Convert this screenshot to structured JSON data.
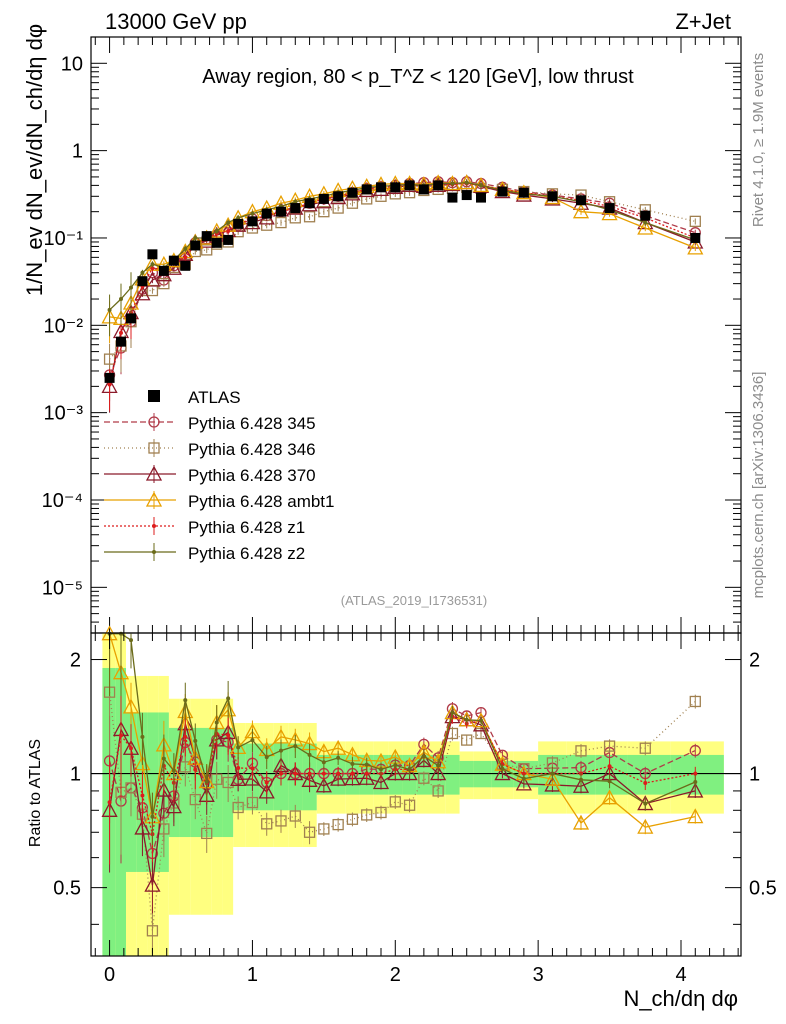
{
  "header": {
    "energy": "13000 GeV pp",
    "process": "Z+Jet"
  },
  "side": {
    "rivet": "Rivet 4.1.0, ≥ 1.9M events",
    "mcplots": "mcplots.cern.ch [arXiv:1306.3436]"
  },
  "chart_data": {
    "type": "line",
    "title": "Away region, 80 < p_T^Z < 120 [GeV], low thrust",
    "analysis_tag": "(ATLAS_2019_I1736531)",
    "xlabel": "N_ch/dη dφ",
    "ylabel": "1/N_ev dN_ev/dN_ch/dη dφ",
    "ratio_ylabel": "Ratio to ATLAS",
    "xlim": [
      -0.13,
      4.42
    ],
    "ylim": [
      3e-06,
      20
    ],
    "ratio_ylim": [
      0.33,
      2.35
    ],
    "log_y": true,
    "x_ticks": [
      "0",
      "1",
      "2",
      "3",
      "4"
    ],
    "y_ticks": [
      "10",
      "1",
      "10⁻¹",
      "10⁻²",
      "10⁻³",
      "10⁻⁴",
      "10⁻⁵"
    ],
    "ratio_ticks": [
      "2",
      "1",
      "0.5"
    ],
    "x": [
      0.0,
      0.08,
      0.15,
      0.23,
      0.3,
      0.38,
      0.45,
      0.53,
      0.6,
      0.68,
      0.75,
      0.83,
      0.9,
      1.0,
      1.1,
      1.2,
      1.3,
      1.4,
      1.5,
      1.6,
      1.7,
      1.8,
      1.9,
      2.0,
      2.1,
      2.2,
      2.3,
      2.4,
      2.5,
      2.6,
      2.75,
      2.9,
      3.1,
      3.3,
      3.5,
      3.75,
      4.1
    ],
    "data": {
      "name": "ATLAS",
      "values": [
        0.0025,
        0.0065,
        0.012,
        0.032,
        0.065,
        0.042,
        0.055,
        0.048,
        0.082,
        0.105,
        0.088,
        0.095,
        0.145,
        0.155,
        0.19,
        0.2,
        0.22,
        0.25,
        0.28,
        0.3,
        0.33,
        0.36,
        0.38,
        0.38,
        0.4,
        0.36,
        0.4,
        0.29,
        0.31,
        0.29,
        0.34,
        0.33,
        0.3,
        0.27,
        0.22,
        0.18,
        0.1
      ]
    },
    "series": [
      {
        "name": "Pythia 6.428 345",
        "color": "#b03a48",
        "marker": "circle",
        "dash": "6,3",
        "values": [
          0.0027,
          0.0055,
          0.011,
          0.026,
          0.04,
          0.033,
          0.048,
          0.058,
          0.088,
          0.098,
          0.108,
          0.115,
          0.14,
          0.165,
          0.18,
          0.2,
          0.22,
          0.25,
          0.28,
          0.3,
          0.33,
          0.37,
          0.39,
          0.4,
          0.42,
          0.43,
          0.44,
          0.43,
          0.44,
          0.42,
          0.38,
          0.34,
          0.31,
          0.28,
          0.25,
          0.18,
          0.115
        ]
      },
      {
        "name": "Pythia 6.428 346",
        "color": "#a08050",
        "marker": "square",
        "dash": "1,3",
        "values": [
          0.0041,
          0.0058,
          0.011,
          0.025,
          0.025,
          0.03,
          0.046,
          0.05,
          0.07,
          0.073,
          0.085,
          0.09,
          0.118,
          0.13,
          0.14,
          0.15,
          0.17,
          0.175,
          0.2,
          0.22,
          0.25,
          0.28,
          0.3,
          0.32,
          0.33,
          0.35,
          0.36,
          0.37,
          0.38,
          0.37,
          0.36,
          0.34,
          0.32,
          0.31,
          0.26,
          0.21,
          0.155
        ]
      },
      {
        "name": "Pythia 6.428 370",
        "color": "#8b1a2a",
        "marker": "triangle",
        "dash": "",
        "values": [
          0.002,
          0.0085,
          0.014,
          0.023,
          0.033,
          0.038,
          0.045,
          0.065,
          0.09,
          0.092,
          0.108,
          0.122,
          0.14,
          0.15,
          0.17,
          0.21,
          0.22,
          0.24,
          0.26,
          0.29,
          0.32,
          0.35,
          0.36,
          0.38,
          0.4,
          0.39,
          0.4,
          0.41,
          0.43,
          0.39,
          0.34,
          0.31,
          0.28,
          0.25,
          0.22,
          0.15,
          0.09
        ]
      },
      {
        "name": "Pythia 6.428 ambt1",
        "color": "#e8a000",
        "marker": "triangle",
        "dash": "",
        "values": [
          0.0125,
          0.012,
          0.018,
          0.034,
          0.05,
          0.05,
          0.055,
          0.07,
          0.09,
          0.1,
          0.12,
          0.14,
          0.17,
          0.2,
          0.22,
          0.25,
          0.27,
          0.3,
          0.32,
          0.35,
          0.37,
          0.39,
          0.41,
          0.42,
          0.42,
          0.41,
          0.43,
          0.42,
          0.43,
          0.4,
          0.36,
          0.33,
          0.29,
          0.2,
          0.19,
          0.13,
          0.077
        ]
      },
      {
        "name": "Pythia 6.428 z1",
        "color": "#dd1c1c",
        "marker": "dot",
        "dash": "2,2",
        "values": [
          0.0021,
          0.0082,
          0.014,
          0.028,
          0.045,
          0.044,
          0.052,
          0.06,
          0.084,
          0.099,
          0.112,
          0.12,
          0.15,
          0.16,
          0.18,
          0.2,
          0.22,
          0.25,
          0.28,
          0.3,
          0.33,
          0.36,
          0.38,
          0.39,
          0.41,
          0.4,
          0.42,
          0.41,
          0.42,
          0.4,
          0.36,
          0.33,
          0.3,
          0.27,
          0.23,
          0.17,
          0.1
        ]
      },
      {
        "name": "Pythia 6.428 z2",
        "color": "#6b6b1a",
        "marker": "dot",
        "dash": "",
        "values": [
          0.015,
          0.02,
          0.027,
          0.04,
          0.05,
          0.046,
          0.056,
          0.075,
          0.1,
          0.1,
          0.12,
          0.15,
          0.17,
          0.19,
          0.21,
          0.23,
          0.26,
          0.28,
          0.3,
          0.33,
          0.35,
          0.38,
          0.39,
          0.4,
          0.41,
          0.4,
          0.42,
          0.42,
          0.43,
          0.4,
          0.35,
          0.32,
          0.3,
          0.26,
          0.21,
          0.15,
          0.095
        ]
      }
    ]
  }
}
